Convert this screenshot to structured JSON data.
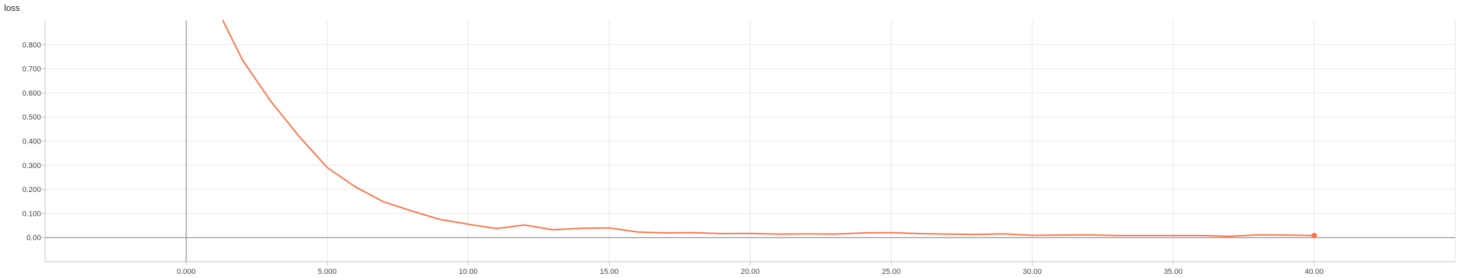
{
  "chart_data": {
    "type": "line",
    "title": "loss",
    "xlabel": "",
    "ylabel": "",
    "xlim": [
      -5.0,
      45.0
    ],
    "ylim": [
      -0.1,
      0.9
    ],
    "x_ticks": [
      "0.000",
      "5.000",
      "10.00",
      "15.00",
      "20.00",
      "25.00",
      "30.00",
      "35.00",
      "40.00"
    ],
    "x_tick_values": [
      0,
      5,
      10,
      15,
      20,
      25,
      30,
      35,
      40
    ],
    "y_ticks": [
      "0.00",
      "0.100",
      "0.200",
      "0.300",
      "0.400",
      "0.500",
      "0.600",
      "0.700",
      "0.800"
    ],
    "y_tick_values": [
      0,
      0.1,
      0.2,
      0.3,
      0.4,
      0.5,
      0.6,
      0.7,
      0.8
    ],
    "grid": true,
    "line_color": "#ff7043",
    "series": [
      {
        "x": [
          1.3,
          2,
          3,
          4,
          5,
          6,
          7,
          8,
          9,
          10,
          11,
          12,
          13,
          14,
          15,
          16,
          17,
          18,
          19,
          20,
          21,
          22,
          23,
          24,
          25,
          26,
          27,
          28,
          29,
          30,
          31,
          32,
          33,
          34,
          35,
          36,
          37,
          38,
          39,
          40
        ],
        "values": [
          0.9,
          0.735,
          0.565,
          0.42,
          0.29,
          0.21,
          0.148,
          0.11,
          0.075,
          0.055,
          0.037,
          0.052,
          0.032,
          0.038,
          0.04,
          0.023,
          0.019,
          0.02,
          0.016,
          0.017,
          0.014,
          0.015,
          0.014,
          0.019,
          0.02,
          0.016,
          0.014,
          0.013,
          0.015,
          0.009,
          0.01,
          0.011,
          0.008,
          0.008,
          0.008,
          0.008,
          0.005,
          0.011,
          0.01,
          0.008
        ]
      }
    ]
  }
}
